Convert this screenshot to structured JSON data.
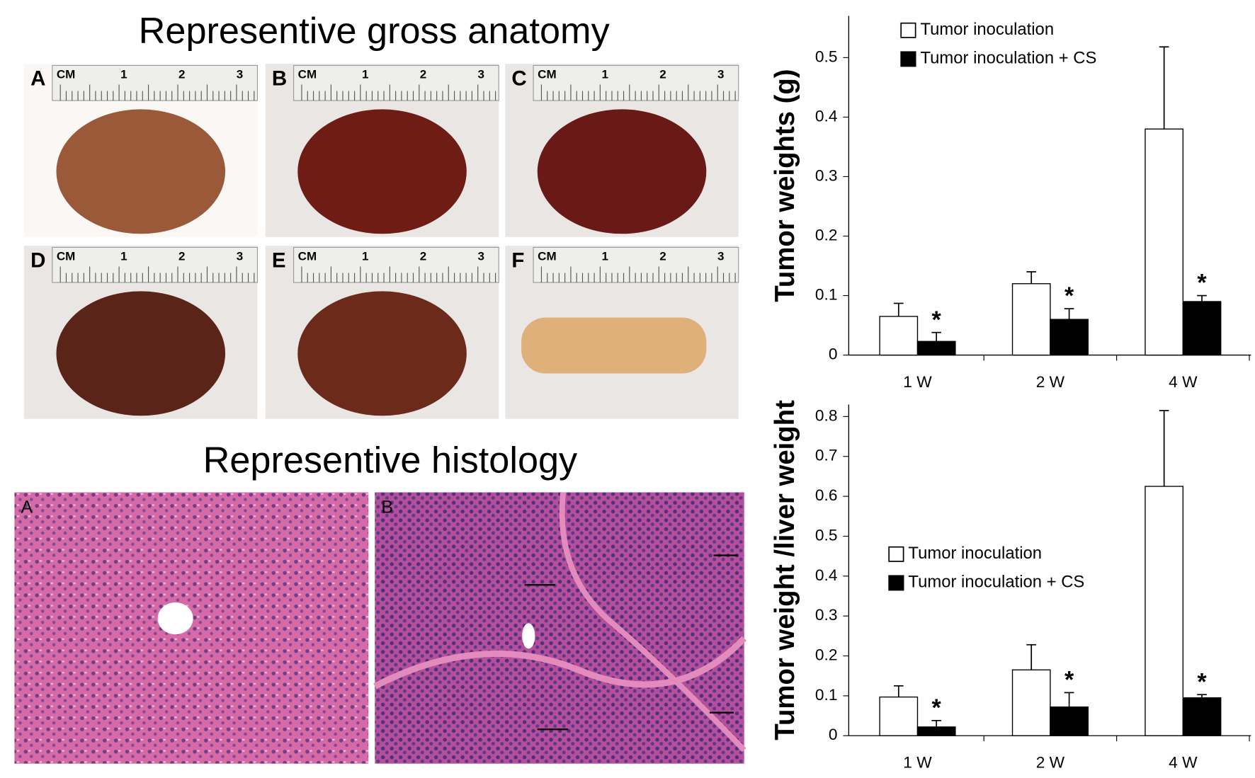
{
  "gross_anatomy": {
    "title": "Representive gross anatomy",
    "panels": [
      "A",
      "B",
      "C",
      "D",
      "E",
      "F"
    ],
    "ruler_labels": [
      "CM",
      "1",
      "2",
      "3"
    ]
  },
  "histology": {
    "title": "Representive histology",
    "panels": [
      "A",
      "B"
    ]
  },
  "chart_data": [
    {
      "type": "bar",
      "ylabel": "Tumor weights (g)",
      "categories": [
        "1 W",
        "2 W",
        "4 W"
      ],
      "series": [
        {
          "name": "Tumor inoculation",
          "color": "#ffffff",
          "values": [
            0.065,
            0.12,
            0.38
          ],
          "errors": [
            0.022,
            0.02,
            0.138
          ]
        },
        {
          "name": "Tumor inoculation + CS",
          "color": "#000000",
          "values": [
            0.023,
            0.06,
            0.09
          ],
          "errors": [
            0.015,
            0.018,
            0.01
          ],
          "annotations": [
            "*",
            "*",
            "*"
          ]
        }
      ],
      "ylim": [
        0,
        0.57
      ],
      "yticks": [
        0,
        0.1,
        0.2,
        0.3,
        0.4,
        0.5
      ],
      "legend": "upper left"
    },
    {
      "type": "bar",
      "ylabel": "Tumor weight /liver weight",
      "categories": [
        "1 W",
        "2 W",
        "4 W"
      ],
      "series": [
        {
          "name": "Tumor inoculation",
          "color": "#ffffff",
          "values": [
            0.097,
            0.165,
            0.625
          ],
          "errors": [
            0.028,
            0.063,
            0.19
          ]
        },
        {
          "name": "Tumor inoculation + CS",
          "color": "#000000",
          "values": [
            0.022,
            0.072,
            0.095
          ],
          "errors": [
            0.016,
            0.036,
            0.008
          ],
          "annotations": [
            "*",
            "*",
            "*"
          ]
        }
      ],
      "ylim": [
        0,
        0.83
      ],
      "yticks": [
        0,
        0.1,
        0.2,
        0.3,
        0.4,
        0.5,
        0.6,
        0.7,
        0.8
      ],
      "legend": "center left"
    }
  ]
}
